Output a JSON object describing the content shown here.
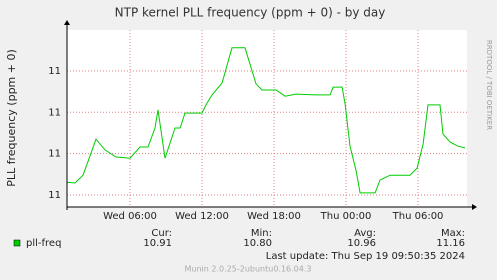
{
  "chart_data": {
    "type": "line",
    "title": "NTP kernel PLL frequency (ppm + 0) - by day",
    "y_label": "PLL frequency (ppm + 0)",
    "side_label": "RRDTOOL / TOBI OETIKER",
    "x": [
      0.75,
      1.42,
      2.08,
      2.75,
      3.17,
      3.92,
      4.83,
      6,
      6.83,
      7.5,
      8.08,
      8.33,
      8.92,
      9.75,
      10.17,
      10.58,
      11.42,
      12,
      12.33,
      12.83,
      13.67,
      14.5,
      15.58,
      16.5,
      17,
      18.17,
      18.92,
      19.83,
      21.42,
      22.67,
      22.92,
      23.67,
      23.92,
      24.33,
      24.83,
      25.17,
      26.42,
      26.83,
      27.67,
      28.5,
      29.33,
      29.92,
      30.42,
      30.83,
      31.83,
      32.08,
      32.67,
      33.33,
      33.92
    ],
    "series": [
      {
        "name": "pll-freq",
        "color": "#00cc00",
        "values": [
          10.831,
          10.829,
          10.848,
          10.901,
          10.935,
          10.909,
          10.892,
          10.889,
          10.916,
          10.916,
          10.962,
          11.006,
          10.889,
          10.962,
          10.962,
          10.998,
          10.998,
          10.998,
          11.018,
          11.042,
          11.071,
          11.156,
          11.156,
          11.069,
          11.054,
          11.054,
          11.039,
          11.044,
          11.042,
          11.042,
          11.061,
          11.061,
          11.02,
          10.918,
          10.86,
          10.805,
          10.805,
          10.836,
          10.848,
          10.848,
          10.848,
          10.865,
          10.923,
          11.018,
          11.018,
          10.947,
          10.928,
          10.918,
          10.914
        ]
      }
    ],
    "xlim": [
      0.75,
      34.08
    ],
    "ylim": [
      10.771,
      11.199
    ],
    "xticks": [
      {
        "value": 6,
        "label": "Wed 06:00"
      },
      {
        "value": 12,
        "label": "Wed 12:00"
      },
      {
        "value": 18,
        "label": "Wed 18:00"
      },
      {
        "value": 24,
        "label": "Thu 00:00"
      },
      {
        "value": 30,
        "label": "Thu 06:00"
      }
    ],
    "yticks": [
      {
        "value": 10.8,
        "label": "11"
      },
      {
        "value": 10.9,
        "label": "11"
      },
      {
        "value": 11.0,
        "label": "11"
      },
      {
        "value": 11.1,
        "label": "11"
      }
    ],
    "grid": true,
    "stats": {
      "labels": [
        "Cur:",
        "Min:",
        "Avg:",
        "Max:"
      ],
      "values": [
        10.91,
        10.8,
        10.96,
        11.16
      ],
      "value_labels": [
        "10.91",
        "10.80",
        "10.96",
        "11.16"
      ]
    },
    "last_update": "Last update: Thu Sep 19 09:50:35 2024",
    "footer": "Munin 2.0.25-2ubuntu0.16.04.3"
  }
}
